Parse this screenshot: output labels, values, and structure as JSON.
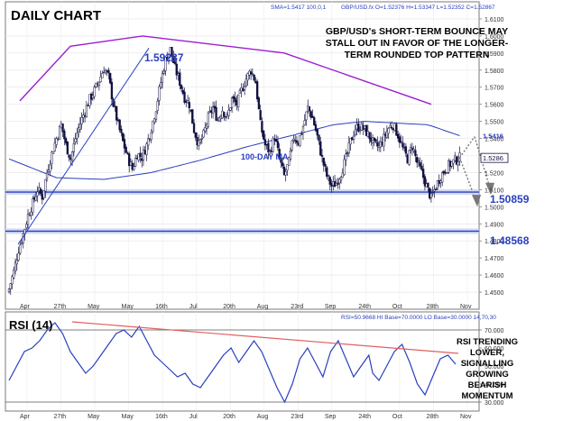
{
  "chart_data": [
    {
      "type": "candlestick",
      "title": "DAILY CHART",
      "header_left": "SMA=1.5417   100,0,1",
      "header_right": "GBP/USD.fx O=1.52376 H=1.53347 L=1.52352 C=1.52867",
      "annotation": [
        "GBP/USD's SHORT-TERM BOUNCE MAY",
        "STALL OUT IN FAVOR OF THE LONGER-",
        "TERM ROUNDED TOP PATTERN"
      ],
      "ma_label": "100-DAY MA",
      "ylim": [
        1.44,
        1.62
      ],
      "y_ticks": [
        "1.6100",
        "1.6000",
        "1.5900",
        "1.5800",
        "1.5700",
        "1.5600",
        "1.5500",
        "1.5400",
        "1.5300",
        "1.5200",
        "1.5100",
        "1.5000",
        "1.4900",
        "1.4800",
        "1.4700",
        "1.4600",
        "1.4500"
      ],
      "x_ticks": [
        "Apr",
        "27th",
        "May",
        "May",
        "16th",
        "Jul",
        "20th",
        "Aug",
        "23rd",
        "Sep",
        "24th",
        "Oct",
        "28th",
        "Nov"
      ],
      "price_labels": [
        {
          "text": "1.59287",
          "value": 1.59287
        },
        {
          "text": "1.50859",
          "value": 1.50859
        },
        {
          "text": "1.48568",
          "value": 1.48568
        }
      ],
      "current_sma_label": "1.5416",
      "current_close_label": "1.5286",
      "support_levels": [
        1.50859,
        1.48568
      ],
      "close_path": [
        [
          0,
          1.452
        ],
        [
          3,
          1.462
        ],
        [
          6,
          1.475
        ],
        [
          9,
          1.484
        ],
        [
          12,
          1.495
        ],
        [
          15,
          1.502
        ],
        [
          18,
          1.51
        ],
        [
          21,
          1.506
        ],
        [
          24,
          1.52
        ],
        [
          27,
          1.531
        ],
        [
          30,
          1.54
        ],
        [
          33,
          1.548
        ],
        [
          36,
          1.536
        ],
        [
          39,
          1.528
        ],
        [
          42,
          1.54
        ],
        [
          45,
          1.549
        ],
        [
          48,
          1.556
        ],
        [
          51,
          1.563
        ],
        [
          54,
          1.568
        ],
        [
          57,
          1.574
        ],
        [
          60,
          1.581
        ],
        [
          63,
          1.576
        ],
        [
          66,
          1.56
        ],
        [
          69,
          1.548
        ],
        [
          72,
          1.538
        ],
        [
          75,
          1.529
        ],
        [
          78,
          1.522
        ],
        [
          81,
          1.531
        ],
        [
          84,
          1.529
        ],
        [
          87,
          1.536
        ],
        [
          90,
          1.546
        ],
        [
          93,
          1.558
        ],
        [
          96,
          1.573
        ],
        [
          99,
          1.586
        ],
        [
          102,
          1.592
        ],
        [
          105,
          1.581
        ],
        [
          108,
          1.573
        ],
        [
          111,
          1.564
        ],
        [
          114,
          1.56
        ],
        [
          117,
          1.545
        ],
        [
          120,
          1.536
        ],
        [
          123,
          1.542
        ],
        [
          126,
          1.552
        ],
        [
          129,
          1.558
        ],
        [
          132,
          1.551
        ],
        [
          135,
          1.557
        ],
        [
          138,
          1.552
        ],
        [
          141,
          1.563
        ],
        [
          144,
          1.56
        ],
        [
          147,
          1.568
        ],
        [
          150,
          1.575
        ],
        [
          153,
          1.58
        ],
        [
          156,
          1.573
        ],
        [
          159,
          1.548
        ],
        [
          162,
          1.536
        ],
        [
          165,
          1.532
        ],
        [
          168,
          1.541
        ],
        [
          171,
          1.528
        ],
        [
          174,
          1.518
        ],
        [
          177,
          1.526
        ],
        [
          180,
          1.541
        ],
        [
          183,
          1.538
        ],
        [
          186,
          1.547
        ],
        [
          189,
          1.558
        ],
        [
          192,
          1.552
        ],
        [
          195,
          1.541
        ],
        [
          198,
          1.528
        ],
        [
          201,
          1.518
        ],
        [
          204,
          1.512
        ],
        [
          207,
          1.514
        ],
        [
          210,
          1.52
        ],
        [
          213,
          1.528
        ],
        [
          216,
          1.538
        ],
        [
          219,
          1.546
        ],
        [
          222,
          1.547
        ],
        [
          225,
          1.545
        ],
        [
          228,
          1.541
        ],
        [
          231,
          1.536
        ],
        [
          234,
          1.535
        ],
        [
          237,
          1.54
        ],
        [
          240,
          1.546
        ],
        [
          243,
          1.548
        ],
        [
          246,
          1.542
        ],
        [
          249,
          1.534
        ],
        [
          252,
          1.528
        ],
        [
          255,
          1.536
        ],
        [
          258,
          1.526
        ],
        [
          261,
          1.52
        ],
        [
          264,
          1.512
        ],
        [
          267,
          1.505
        ],
        [
          270,
          1.512
        ],
        [
          273,
          1.518
        ],
        [
          276,
          1.522
        ],
        [
          279,
          1.525
        ],
        [
          282,
          1.527
        ],
        [
          285,
          1.5287
        ]
      ],
      "ma_path": [
        [
          0,
          1.528
        ],
        [
          30,
          1.517
        ],
        [
          60,
          1.516
        ],
        [
          90,
          1.52
        ],
        [
          120,
          1.527
        ],
        [
          150,
          1.535
        ],
        [
          180,
          1.542
        ],
        [
          205,
          1.548
        ],
        [
          225,
          1.55
        ],
        [
          245,
          1.549
        ],
        [
          265,
          1.548
        ],
        [
          285,
          1.5416
        ]
      ],
      "rsi_title": "RSI (14)",
      "rsi_header": "RSI=50.9668  HI Base=70.0000  LO Base=30.0000   14,70,30",
      "rsi_annotation": [
        "RSI TRENDING",
        "LOWER,",
        "SIGNALLING",
        "GROWING",
        "BEARISH",
        "MOMENTUM"
      ],
      "rsi_ylim": [
        25,
        80
      ],
      "rsi_ticks": [
        "70.000",
        "60.000",
        "50.000",
        "40.000",
        "30.000"
      ],
      "rsi_levels": [
        70,
        30
      ],
      "rsi_path": [
        [
          0,
          42
        ],
        [
          6,
          50
        ],
        [
          12,
          58
        ],
        [
          18,
          60
        ],
        [
          24,
          64
        ],
        [
          30,
          70
        ],
        [
          36,
          74
        ],
        [
          42,
          68
        ],
        [
          48,
          58
        ],
        [
          54,
          52
        ],
        [
          60,
          46
        ],
        [
          66,
          50
        ],
        [
          72,
          56
        ],
        [
          78,
          62
        ],
        [
          84,
          68
        ],
        [
          90,
          70
        ],
        [
          96,
          66
        ],
        [
          102,
          72
        ],
        [
          108,
          64
        ],
        [
          114,
          56
        ],
        [
          120,
          52
        ],
        [
          126,
          48
        ],
        [
          132,
          44
        ],
        [
          138,
          46
        ],
        [
          144,
          40
        ],
        [
          150,
          38
        ],
        [
          156,
          44
        ],
        [
          162,
          50
        ],
        [
          168,
          56
        ],
        [
          174,
          60
        ],
        [
          180,
          52
        ],
        [
          186,
          58
        ],
        [
          192,
          64
        ],
        [
          198,
          58
        ],
        [
          204,
          48
        ],
        [
          210,
          38
        ],
        [
          216,
          30
        ],
        [
          222,
          40
        ],
        [
          228,
          54
        ],
        [
          234,
          60
        ],
        [
          240,
          52
        ],
        [
          246,
          44
        ],
        [
          252,
          58
        ],
        [
          258,
          64
        ],
        [
          264,
          54
        ],
        [
          270,
          44
        ],
        [
          276,
          50
        ],
        [
          282,
          56
        ],
        [
          285,
          46
        ],
        [
          290,
          42
        ],
        [
          296,
          50
        ],
        [
          302,
          58
        ],
        [
          308,
          62
        ],
        [
          314,
          52
        ],
        [
          320,
          40
        ],
        [
          326,
          34
        ],
        [
          332,
          44
        ],
        [
          338,
          54
        ],
        [
          344,
          56
        ],
        [
          350,
          51
        ]
      ]
    }
  ]
}
